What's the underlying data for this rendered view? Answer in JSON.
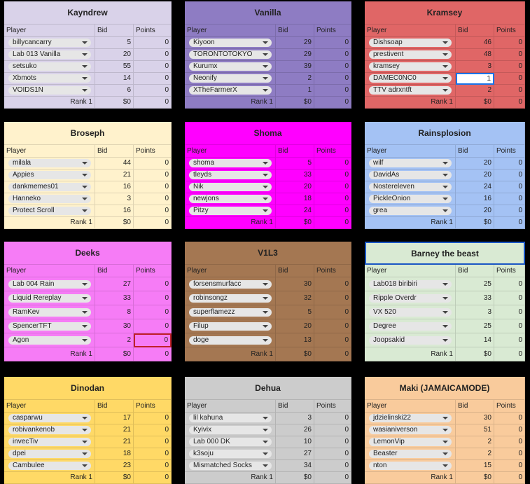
{
  "columns": [
    "Player",
    "Bid",
    "Points"
  ],
  "teams": [
    {
      "name": "Kayndrew",
      "color": "#d9d2e9",
      "players": [
        {
          "name": "billycancarry",
          "bid": 5,
          "points": 0
        },
        {
          "name": "Lab 013 Vanilla",
          "bid": 20,
          "points": 0
        },
        {
          "name": "setsuko",
          "bid": 55,
          "points": 0
        },
        {
          "name": "Xbmots",
          "bid": 14,
          "points": 0
        },
        {
          "name": "VOIDS1N",
          "bid": 6,
          "points": 0
        }
      ],
      "rank": "Rank 1",
      "total": "$0",
      "points": 0
    },
    {
      "name": "Vanilla",
      "color": "#8e7cc3",
      "players": [
        {
          "name": "Kiyoon",
          "bid": 29,
          "points": 0
        },
        {
          "name": "TORONTOTOKYO",
          "bid": 29,
          "points": 0
        },
        {
          "name": "Kurumx",
          "bid": 39,
          "points": 0
        },
        {
          "name": "Neonify",
          "bid": 2,
          "points": 0
        },
        {
          "name": "XTheFarmerX",
          "bid": 1,
          "points": 0
        }
      ],
      "rank": "Rank 1",
      "total": "$0",
      "points": 0
    },
    {
      "name": "Kramsey",
      "color": "#e06666",
      "players": [
        {
          "name": "Dishsoap",
          "bid": 46,
          "points": 0
        },
        {
          "name": "prestivent",
          "bid": 48,
          "points": 0
        },
        {
          "name": "kramsey",
          "bid": 3,
          "points": 0
        },
        {
          "name": "DAMEC0NC0",
          "bid": 1,
          "points": 0
        },
        {
          "name": "TTV adrxntft",
          "bid": 2,
          "points": 0
        }
      ],
      "rank": "Rank 1",
      "total": "$0",
      "points": 0
    },
    {
      "name": "Broseph",
      "color": "#fff2cc",
      "players": [
        {
          "name": "milala",
          "bid": 44,
          "points": 0
        },
        {
          "name": "Appies",
          "bid": 21,
          "points": 0
        },
        {
          "name": "dankmemes01",
          "bid": 16,
          "points": 0
        },
        {
          "name": "Hanneko",
          "bid": 3,
          "points": 0
        },
        {
          "name": "Protect Scroll",
          "bid": 16,
          "points": 0
        }
      ],
      "rank": "Rank 1",
      "total": "$0",
      "points": 0
    },
    {
      "name": "Shoma",
      "color": "#ff00ff",
      "players": [
        {
          "name": "shoma",
          "bid": 5,
          "points": 0
        },
        {
          "name": "tleyds",
          "bid": 33,
          "points": 0
        },
        {
          "name": "Nik",
          "bid": 20,
          "points": 0
        },
        {
          "name": "newjons",
          "bid": 18,
          "points": 0
        },
        {
          "name": "Pitzy",
          "bid": 24,
          "points": 0
        }
      ],
      "rank": "Rank 1",
      "total": "$0",
      "points": 0
    },
    {
      "name": "Rainsplosion",
      "color": "#a4c2f4",
      "players": [
        {
          "name": "wilf",
          "bid": 20,
          "points": 0
        },
        {
          "name": "DavidAs",
          "bid": 20,
          "points": 0
        },
        {
          "name": "Nostereleven",
          "bid": 24,
          "points": 0
        },
        {
          "name": "PickleOnion",
          "bid": 16,
          "points": 0
        },
        {
          "name": "grea",
          "bid": 20,
          "points": 0
        }
      ],
      "rank": "Rank 1",
      "total": "$0",
      "points": 0
    },
    {
      "name": "Deeks",
      "color": "#f67cf6",
      "players": [
        {
          "name": "Lab 004 Rain",
          "bid": 27,
          "points": 0
        },
        {
          "name": "Liquid Rereplay",
          "bid": 33,
          "points": 0
        },
        {
          "name": "RamKev",
          "bid": 8,
          "points": 0
        },
        {
          "name": "SpencerTFT",
          "bid": 30,
          "points": 0
        },
        {
          "name": "Agon",
          "bid": 2,
          "points": 0
        }
      ],
      "rank": "Rank 1",
      "total": "$0",
      "points": 0
    },
    {
      "name": "V1L3",
      "color": "#a47752",
      "players": [
        {
          "name": "forsensmurfacc",
          "bid": 30,
          "points": 0
        },
        {
          "name": "robinsongz",
          "bid": 32,
          "points": 0
        },
        {
          "name": "superflamezz",
          "bid": 5,
          "points": 0
        },
        {
          "name": "Filup",
          "bid": 20,
          "points": 0
        },
        {
          "name": "doge",
          "bid": 13,
          "points": 0
        }
      ],
      "rank": "Rank 1",
      "total": "$0",
      "points": 0
    },
    {
      "name": "Barney the beast",
      "color": "#d9ead3",
      "players": [
        {
          "name": "Lab018 biribiri",
          "bid": 25,
          "points": 0
        },
        {
          "name": "Ripple Overdr",
          "bid": 33,
          "points": 0
        },
        {
          "name": "VX 520",
          "bid": 3,
          "points": 0
        },
        {
          "name": "Degree",
          "bid": 25,
          "points": 0
        },
        {
          "name": "Joopsakid",
          "bid": 14,
          "points": 0
        }
      ],
      "rank": "Rank 1",
      "total": "$0",
      "points": 0
    },
    {
      "name": "Dinodan",
      "color": "#ffd966",
      "players": [
        {
          "name": "casparwu",
          "bid": 17,
          "points": 0
        },
        {
          "name": "robivankenob",
          "bid": 21,
          "points": 0
        },
        {
          "name": "invecTiv",
          "bid": 21,
          "points": 0
        },
        {
          "name": "dpei",
          "bid": 18,
          "points": 0
        },
        {
          "name": "Cambulee",
          "bid": 23,
          "points": 0
        }
      ],
      "rank": "Rank 1",
      "total": "$0",
      "points": 0
    },
    {
      "name": "Dehua",
      "color": "#cccccc",
      "players": [
        {
          "name": "lil kahuna",
          "bid": 3,
          "points": 0
        },
        {
          "name": "Kyivix",
          "bid": 26,
          "points": 0
        },
        {
          "name": "Lab 000 DK",
          "bid": 10,
          "points": 0
        },
        {
          "name": "k3soju",
          "bid": 27,
          "points": 0
        },
        {
          "name": "Mismatched Socks",
          "bid": 34,
          "points": 0
        }
      ],
      "rank": "Rank 1",
      "total": "$0",
      "points": 0
    },
    {
      "name": "Maki (JAMAICAMODE)",
      "color": "#f9cb9c",
      "players": [
        {
          "name": "jdzielinski22",
          "bid": 30,
          "points": 0
        },
        {
          "name": "wasianiverson",
          "bid": 51,
          "points": 0
        },
        {
          "name": "LemonVip",
          "bid": 2,
          "points": 0
        },
        {
          "name": "Beaster",
          "bid": 2,
          "points": 0
        },
        {
          "name": "nton",
          "bid": 15,
          "points": 0
        }
      ],
      "rank": "Rank 1",
      "total": "$0",
      "points": 0
    }
  ]
}
